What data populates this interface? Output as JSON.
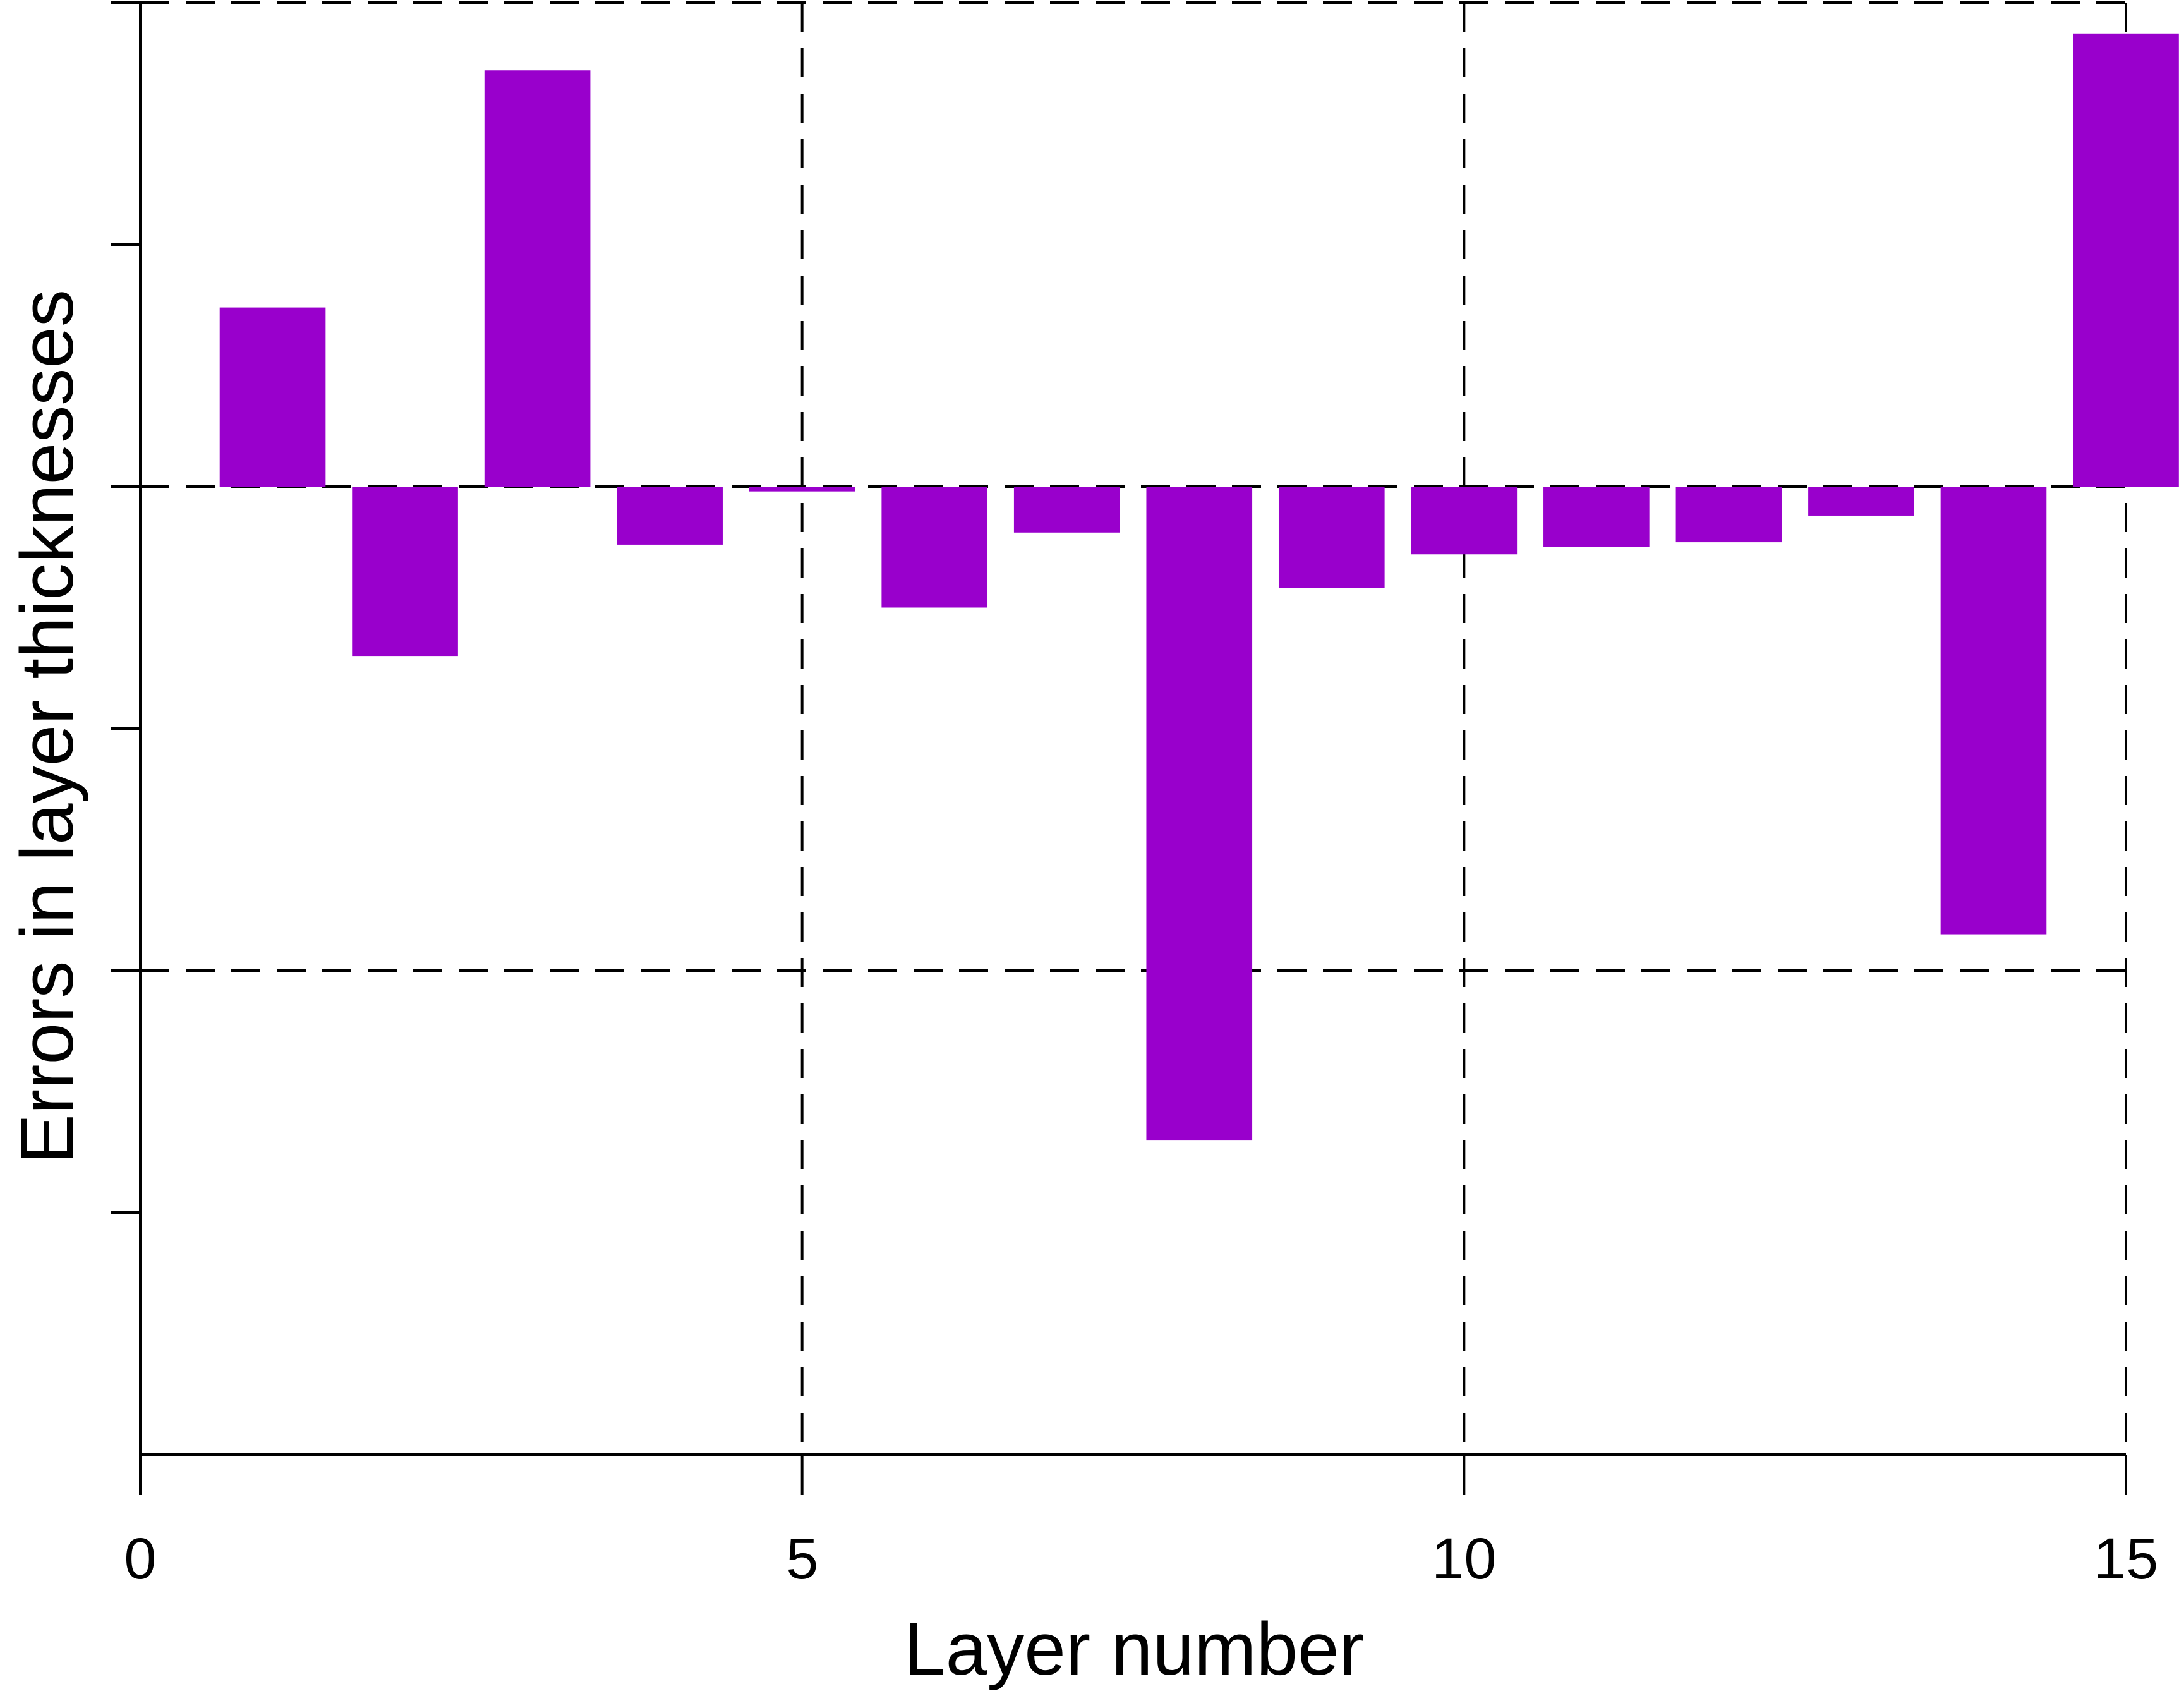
{
  "chart_data": {
    "type": "bar",
    "title": "",
    "xlabel": "Layer number",
    "ylabel": "Errors in layer thicknesses",
    "x": [
      1,
      2,
      3,
      4,
      5,
      6,
      7,
      8,
      9,
      10,
      11,
      12,
      13,
      14,
      15
    ],
    "values": [
      0.37,
      -0.35,
      0.86,
      -0.12,
      -0.01,
      -0.25,
      -0.095,
      -1.35,
      -0.21,
      -0.14,
      -0.125,
      -0.115,
      -0.06,
      -0.925,
      0.935
    ],
    "xlim": [
      0,
      15
    ],
    "ylim": [
      -2,
      1
    ],
    "x_ticks": [
      "0",
      "5",
      "10",
      "15"
    ],
    "y_ticks": [
      -1.5,
      -1,
      -0.5,
      0,
      0.5,
      1
    ],
    "y_gridlines": [
      -2,
      -1,
      0,
      1
    ],
    "x_gridlines": [
      5,
      10,
      15
    ],
    "grid": "dashed",
    "bar_color": "#9900cc",
    "legend": "none"
  }
}
